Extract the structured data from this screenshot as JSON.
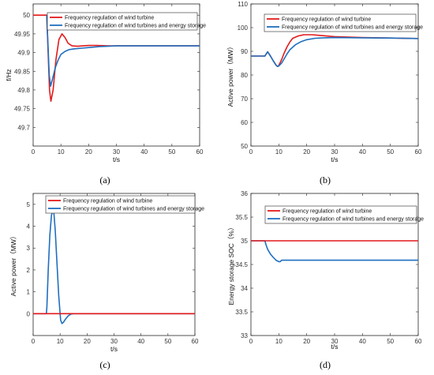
{
  "colors": {
    "wind": "#e31a1c",
    "storage": "#1f6fbf"
  },
  "chart_data": [
    {
      "type": "line",
      "caption": "(a)",
      "xlabel": "t/s",
      "ylabel": "f/Hz",
      "xlim": [
        0,
        60
      ],
      "ylim": [
        49.65,
        50.03
      ],
      "xticks": [
        0,
        10,
        20,
        30,
        40,
        50,
        60
      ],
      "yticks": [
        49.7,
        49.75,
        49.8,
        49.85,
        49.9,
        49.95,
        50
      ],
      "ytick_labels": [
        "49.7",
        "49.75",
        "49.8",
        "49.85",
        "49.9",
        "49.95",
        "50"
      ],
      "legend": "top-right",
      "series": [
        {
          "name": "Frequency regulation of wind turbine",
          "color": "wind",
          "x": [
            0,
            4.9,
            5.3,
            5.9,
            6.4,
            7.2,
            8.2,
            9.3,
            10.4,
            11.5,
            12.6,
            14,
            16,
            18,
            20,
            23,
            27,
            32,
            40,
            50,
            60
          ],
          "y": [
            50.0,
            50.0,
            49.92,
            49.8,
            49.77,
            49.8,
            49.88,
            49.935,
            49.95,
            49.94,
            49.925,
            49.918,
            49.917,
            49.918,
            49.919,
            49.919,
            49.918,
            49.918,
            49.918,
            49.918,
            49.918
          ]
        },
        {
          "name": "Frequency regulation of wind turbines and energy storage",
          "color": "storage",
          "x": [
            4.9,
            5.3,
            5.8,
            6.3,
            7.0,
            8.0,
            9.0,
            10.0,
            11.5,
            13,
            15,
            18,
            21,
            24,
            27,
            30,
            33,
            40,
            50,
            60
          ],
          "y": [
            50.0,
            49.93,
            49.84,
            49.81,
            49.83,
            49.86,
            49.88,
            49.895,
            49.903,
            49.908,
            49.91,
            49.912,
            49.914,
            49.916,
            49.917,
            49.918,
            49.918,
            49.918,
            49.918,
            49.918
          ]
        }
      ]
    },
    {
      "type": "line",
      "caption": "(b)",
      "xlabel": "t/s",
      "ylabel": "Active power（MW）",
      "xlim": [
        0,
        60
      ],
      "ylim": [
        50,
        110
      ],
      "xticks": [
        0,
        10,
        20,
        30,
        40,
        50,
        60
      ],
      "yticks": [
        50,
        60,
        70,
        80,
        90,
        100,
        110
      ],
      "ytick_labels": [
        "50",
        "60",
        "70",
        "80",
        "90",
        "100",
        "110"
      ],
      "legend": "top-right",
      "series": [
        {
          "name": "Frequency regulation of wind turbine",
          "color": "wind",
          "x": [
            0,
            5,
            6,
            7,
            8,
            9,
            9.5,
            10,
            11,
            12,
            13,
            14,
            15,
            17,
            19,
            22,
            25,
            30,
            40,
            50,
            60
          ],
          "y": [
            88,
            88,
            89.8,
            88,
            86,
            84.2,
            83.6,
            84,
            86.5,
            89.5,
            92,
            94,
            95.5,
            96.5,
            97,
            97,
            96.7,
            96.2,
            95.8,
            95.6,
            95.4
          ]
        },
        {
          "name": "Frequency regulation of wind turbines and energy storage",
          "color": "storage",
          "x": [
            0,
            5,
            6,
            7,
            8,
            9,
            9.5,
            10,
            11,
            12,
            13,
            14,
            16,
            18,
            20,
            23,
            26,
            30,
            40,
            50,
            60
          ],
          "y": [
            88,
            88,
            89.8,
            88,
            86,
            84.2,
            83.6,
            83.8,
            85,
            87,
            89,
            90.7,
            92.8,
            94.1,
            94.9,
            95.5,
            95.7,
            95.8,
            95.7,
            95.6,
            95.4
          ]
        }
      ]
    },
    {
      "type": "line",
      "caption": "(c)",
      "xlabel": "t/s",
      "ylabel": "Active power（MW）",
      "xlim": [
        0,
        60
      ],
      "ylim": [
        -1,
        5.5
      ],
      "xticks": [
        0,
        10,
        20,
        30,
        40,
        50,
        60
      ],
      "yticks": [
        0,
        1,
        2,
        3,
        4,
        5
      ],
      "ytick_labels": [
        "0",
        "1",
        "2",
        "3",
        "4",
        "5"
      ],
      "legend": "top-right",
      "series": [
        {
          "name": "Frequency regulation of wind turbine",
          "color": "wind",
          "x": [
            0,
            60
          ],
          "y": [
            0,
            0
          ]
        },
        {
          "name": "Frequency regulation of wind turbines and energy storage",
          "color": "storage",
          "x": [
            0,
            4.9,
            5.1,
            5.6,
            6.2,
            6.8,
            7.3,
            7.7,
            8.2,
            8.8,
            9.5,
            10.2,
            10.7,
            11.2,
            12,
            13,
            14,
            15,
            60
          ],
          "y": [
            0,
            0,
            0.3,
            2.0,
            3.6,
            4.5,
            4.75,
            4.6,
            3.8,
            2.4,
            0.8,
            -0.3,
            -0.45,
            -0.4,
            -0.25,
            -0.1,
            -0.02,
            0,
            0
          ]
        }
      ]
    },
    {
      "type": "line",
      "caption": "(d)",
      "xlabel": "t/s",
      "ylabel": "Energy storage SOC（%）",
      "xlim": [
        0,
        60
      ],
      "ylim": [
        33,
        36
      ],
      "xticks": [
        0,
        10,
        20,
        30,
        40,
        50,
        60
      ],
      "yticks": [
        33,
        33.5,
        34,
        34.5,
        35,
        35.5,
        36
      ],
      "ytick_labels": [
        "33",
        "33.5",
        "34",
        "34.5",
        "35",
        "35.5",
        "36"
      ],
      "legend": "top-right",
      "series": [
        {
          "name": "Frequency regulation of wind turbine",
          "color": "wind",
          "x": [
            0,
            60
          ],
          "y": [
            35,
            35
          ]
        },
        {
          "name": "Frequency regulation of wind turbines and energy storage",
          "color": "storage",
          "x": [
            0,
            5,
            5.5,
            6,
            7,
            8,
            9,
            10,
            10.5,
            11,
            60
          ],
          "y": [
            35,
            35,
            34.9,
            34.82,
            34.72,
            34.65,
            34.59,
            34.56,
            34.56,
            34.59,
            34.59
          ]
        }
      ]
    }
  ]
}
